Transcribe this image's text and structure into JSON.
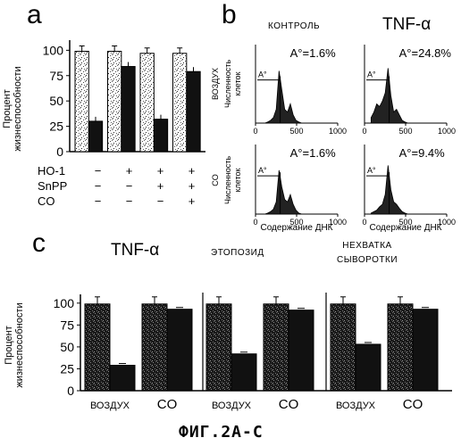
{
  "figure_label": "ФИГ.2А-С",
  "panel_a": {
    "label": "a",
    "ylabel_line1": "Процент",
    "ylabel_line2": "жизнеспособности",
    "yticks": [
      "100",
      "75",
      "50",
      "25",
      "0"
    ],
    "row_labels": [
      "HO-1",
      "SnPP",
      "CO"
    ],
    "row_signs": [
      [
        "−",
        "+",
        "+",
        "+"
      ],
      [
        "−",
        "−",
        "+",
        "+"
      ],
      [
        "−",
        "−",
        "−",
        "+"
      ]
    ]
  },
  "panel_b": {
    "label": "b",
    "col_titles": [
      "КОНТРОЛЬ",
      "TNF-α"
    ],
    "row_titles": [
      "ВОЗДУХ",
      "CO"
    ],
    "ylabel_line1": "Численность",
    "ylabel_line2": "клеток",
    "xlabel": "Содержание ДНК",
    "xticks": [
      "0",
      "500",
      "1000"
    ],
    "apo_marker": "A°",
    "annotations": [
      [
        "A°=1.6%",
        "A°=24.8%"
      ],
      [
        "A°=1.6%",
        "A°=9.4%"
      ]
    ]
  },
  "panel_c": {
    "label": "c",
    "ylabel_line1": "Процент",
    "ylabel_line2": "жизнеспособности",
    "yticks": [
      "100",
      "75",
      "50",
      "25",
      "0"
    ],
    "group_titles": [
      "TNF-α",
      "ЭТОПОЗИД",
      "НЕХВАТКА СЫВОРОТКИ"
    ],
    "group_title_lines": [
      [
        "TNF-α"
      ],
      [
        "ЭТОПОЗИД"
      ],
      [
        "НЕХВАТКА",
        "СЫВОРОТКИ"
      ]
    ],
    "xlabels": [
      "ВОЗДУХ",
      "CO"
    ]
  },
  "chart_data": [
    {
      "type": "bar",
      "panel": "a",
      "ylabel": "Процент жизнеспособности",
      "ylim": [
        0,
        110
      ],
      "categories": [
        "− − −",
        "+ − −",
        "+ + −",
        "+ + +"
      ],
      "series": [
        {
          "values": [
            99,
            99,
            97,
            97
          ]
        },
        {
          "values": [
            30,
            84,
            32,
            79
          ]
        }
      ]
    },
    {
      "type": "area",
      "panel": "b",
      "xlabel": "Содержание ДНК",
      "ylabel": "Численность клеток",
      "xlim": [
        0,
        1000
      ],
      "plots": [
        {
          "row": "ВОЗДУХ",
          "col": "КОНТРОЛЬ",
          "apoptotic_percent": 1.6
        },
        {
          "row": "ВОЗДУХ",
          "col": "TNF-α",
          "apoptotic_percent": 24.8
        },
        {
          "row": "CO",
          "col": "КОНТРОЛЬ",
          "apoptotic_percent": 1.6
        },
        {
          "row": "CO",
          "col": "TNF-α",
          "apoptotic_percent": 9.4
        }
      ]
    },
    {
      "type": "bar",
      "panel": "c",
      "ylabel": "Процент жизнеспособности",
      "ylim": [
        0,
        110
      ],
      "groups": [
        "TNF-α",
        "ЭТОПОЗИД",
        "НЕХВАТКА СЫВОРОТКИ"
      ],
      "categories": [
        "ВОЗДУХ",
        "CO"
      ],
      "series": [
        {
          "values": [
            [
              99,
              29
            ],
            [
              99,
              93
            ]
          ]
        },
        {
          "values": [
            [
              99,
              42
            ],
            [
              99,
              92
            ]
          ]
        },
        {
          "values": [
            [
              99,
              53
            ],
            [
              99,
              93
            ]
          ]
        }
      ]
    }
  ]
}
